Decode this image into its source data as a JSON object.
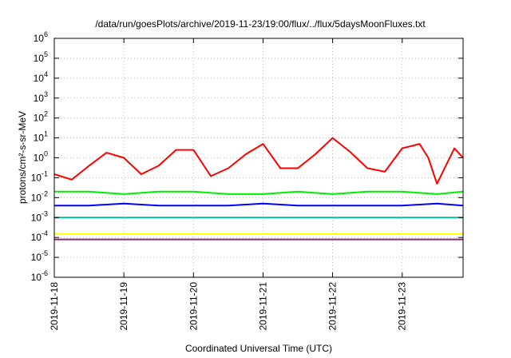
{
  "chart_data": {
    "type": "line",
    "title": "/data/run/goesPlots/archive/2019-11-23/19:00/flux/../flux/5daysMoonFluxes.txt",
    "xlabel": "Coordinated Universal Time (UTC)",
    "ylabel": "protons/cm²-s-sr-MeV",
    "y_scale": "log",
    "ylim": [
      1e-06,
      1000000.0
    ],
    "y_ticks": [
      {
        "value": 1e-06,
        "base": "10",
        "exp": "-6"
      },
      {
        "value": 1e-05,
        "base": "10",
        "exp": "-5"
      },
      {
        "value": 0.0001,
        "base": "10",
        "exp": "-4"
      },
      {
        "value": 0.001,
        "base": "10",
        "exp": "-3"
      },
      {
        "value": 0.01,
        "base": "10",
        "exp": "-2"
      },
      {
        "value": 0.1,
        "base": "10",
        "exp": "-1"
      },
      {
        "value": 1,
        "base": "10",
        "exp": "0"
      },
      {
        "value": 10,
        "base": "10",
        "exp": "1"
      },
      {
        "value": 100,
        "base": "10",
        "exp": "2"
      },
      {
        "value": 1000,
        "base": "10",
        "exp": "3"
      },
      {
        "value": 10000,
        "base": "10",
        "exp": "4"
      },
      {
        "value": 100000,
        "base": "10",
        "exp": "5"
      },
      {
        "value": 1000000,
        "base": "10",
        "exp": "6"
      }
    ],
    "xlim": [
      "2019-11-18 00:00",
      "2019-11-23 21:00"
    ],
    "x_ticks": [
      "2019-11-18",
      "2019-11-19",
      "2019-11-20",
      "2019-11-21",
      "2019-11-22",
      "2019-11-23"
    ],
    "grid": true,
    "series": [
      {
        "color": "#ff0000",
        "x": [
          "2019-11-18 00:00",
          "2019-11-18 06:00",
          "2019-11-18 12:00",
          "2019-11-18 18:00",
          "2019-11-19 00:00",
          "2019-11-19 06:00",
          "2019-11-19 12:00",
          "2019-11-19 18:00",
          "2019-11-20 00:00",
          "2019-11-20 06:00",
          "2019-11-20 12:00",
          "2019-11-20 18:00",
          "2019-11-21 00:00",
          "2019-11-21 06:00",
          "2019-11-21 12:00",
          "2019-11-21 18:00",
          "2019-11-22 00:00",
          "2019-11-22 06:00",
          "2019-11-22 12:00",
          "2019-11-22 18:00",
          "2019-11-23 00:00",
          "2019-11-23 06:00",
          "2019-11-23 09:00",
          "2019-11-23 12:00",
          "2019-11-23 18:00",
          "2019-11-23 21:00"
        ],
        "values": [
          0.15,
          0.08,
          0.4,
          1.8,
          1.0,
          0.15,
          0.4,
          2.5,
          2.5,
          0.12,
          0.3,
          1.5,
          5.0,
          0.3,
          0.3,
          1.5,
          10.0,
          2.0,
          0.3,
          0.2,
          3.0,
          5.0,
          1.0,
          0.05,
          3.0,
          1.0
        ]
      },
      {
        "color": "#00ee00",
        "x": [
          "2019-11-18 00:00",
          "2019-11-18 12:00",
          "2019-11-19 00:00",
          "2019-11-19 12:00",
          "2019-11-20 00:00",
          "2019-11-20 12:00",
          "2019-11-21 00:00",
          "2019-11-21 12:00",
          "2019-11-22 00:00",
          "2019-11-22 12:00",
          "2019-11-23 00:00",
          "2019-11-23 12:00",
          "2019-11-23 21:00"
        ],
        "values": [
          0.02,
          0.02,
          0.015,
          0.02,
          0.02,
          0.015,
          0.015,
          0.02,
          0.015,
          0.02,
          0.02,
          0.015,
          0.02
        ]
      },
      {
        "color": "#0000ff",
        "x": [
          "2019-11-18 00:00",
          "2019-11-18 12:00",
          "2019-11-19 00:00",
          "2019-11-19 12:00",
          "2019-11-20 00:00",
          "2019-11-20 12:00",
          "2019-11-21 00:00",
          "2019-11-21 12:00",
          "2019-11-22 00:00",
          "2019-11-22 12:00",
          "2019-11-23 00:00",
          "2019-11-23 12:00",
          "2019-11-23 21:00"
        ],
        "values": [
          0.004,
          0.004,
          0.005,
          0.004,
          0.004,
          0.004,
          0.005,
          0.004,
          0.004,
          0.004,
          0.004,
          0.005,
          0.004
        ]
      },
      {
        "color": "#00c0a0",
        "x": [
          "2019-11-18 00:00",
          "2019-11-19 00:00",
          "2019-11-20 00:00",
          "2019-11-21 00:00",
          "2019-11-22 00:00",
          "2019-11-23 00:00",
          "2019-11-23 21:00"
        ],
        "values": [
          0.001,
          0.001,
          0.001,
          0.001,
          0.001,
          0.001,
          0.001
        ]
      },
      {
        "color": "#ffff00",
        "x": [
          "2019-11-18 00:00",
          "2019-11-19 00:00",
          "2019-11-20 00:00",
          "2019-11-21 00:00",
          "2019-11-22 00:00",
          "2019-11-23 00:00",
          "2019-11-23 21:00"
        ],
        "values": [
          0.00015,
          0.00015,
          0.00015,
          0.00015,
          0.00015,
          0.00015,
          0.00015
        ]
      },
      {
        "color": "#8b2a6a",
        "x": [
          "2019-11-18 00:00",
          "2019-11-19 00:00",
          "2019-11-20 00:00",
          "2019-11-21 00:00",
          "2019-11-22 00:00",
          "2019-11-23 00:00",
          "2019-11-23 21:00"
        ],
        "values": [
          8e-05,
          8e-05,
          8e-05,
          8e-05,
          8e-05,
          8e-05,
          8e-05
        ]
      }
    ]
  }
}
